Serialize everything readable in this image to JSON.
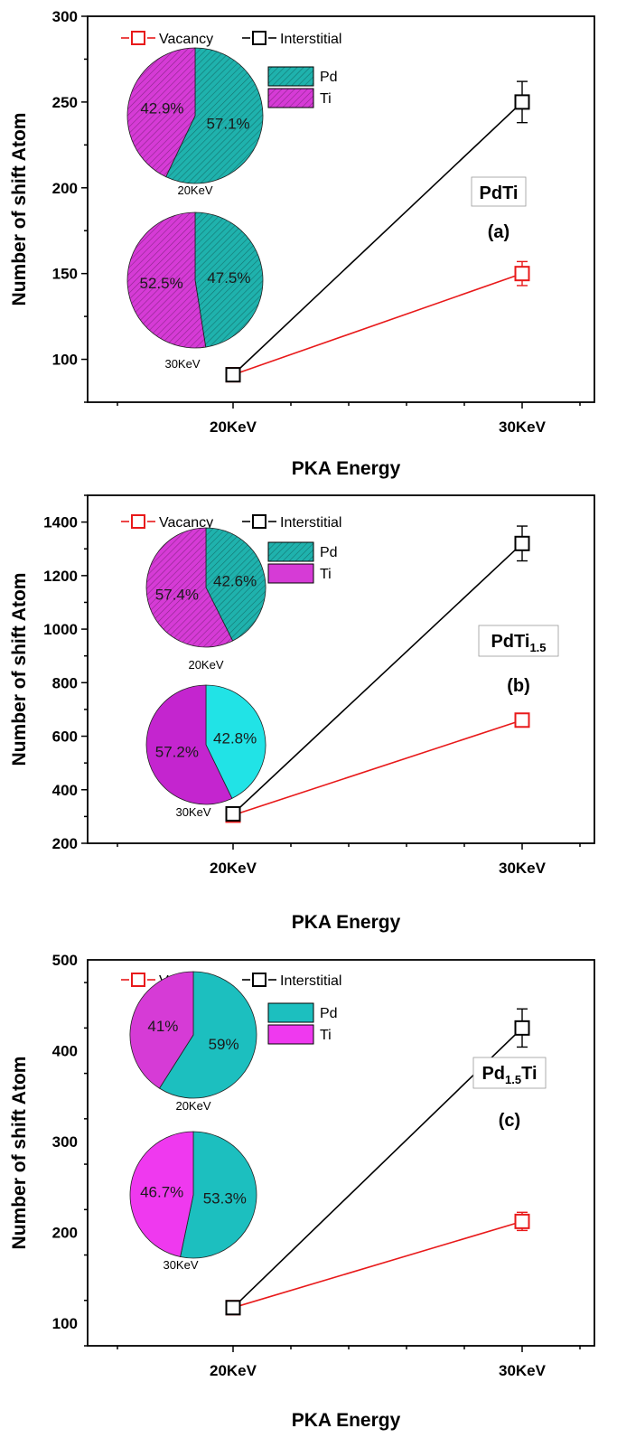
{
  "chart_data": [
    {
      "type": "line",
      "panel_label": "(a)",
      "material": {
        "base": "PdTi",
        "sub": "",
        "tail": ""
      },
      "xlabel": "PKA Energy",
      "ylabel": "Number of shift Atom",
      "categories": [
        "20KeV",
        "30KeV"
      ],
      "ylim": [
        75,
        300
      ],
      "yticks": [
        100,
        150,
        200,
        250,
        300
      ],
      "series": [
        {
          "name": "Vacancy",
          "color": "#e8191a",
          "values": [
            91,
            150
          ],
          "errors": [
            0,
            7
          ]
        },
        {
          "name": "Interstitial",
          "color": "#000000",
          "values": [
            91,
            250
          ],
          "errors": [
            0,
            12
          ]
        }
      ],
      "pie_legend": [
        {
          "label": "Pd",
          "color": "#1fb2ad",
          "hatched": true
        },
        {
          "label": "Ti",
          "color": "#d63bd6",
          "hatched": true
        }
      ],
      "pies": [
        {
          "caption": "20KeV",
          "slices": [
            {
              "label": "Pd",
              "value": 57.1,
              "text": "57.1%",
              "color": "#1fb2ad",
              "hatched": true
            },
            {
              "label": "Ti",
              "value": 42.9,
              "text": "42.9%",
              "color": "#d63bd6",
              "hatched": true
            }
          ]
        },
        {
          "caption": "30KeV",
          "slices": [
            {
              "label": "Pd",
              "value": 47.5,
              "text": "47.5%",
              "color": "#1fb2ad",
              "hatched": true
            },
            {
              "label": "Ti",
              "value": 52.5,
              "text": "52.5%",
              "color": "#d63bd6",
              "hatched": true
            }
          ]
        }
      ]
    },
    {
      "type": "line",
      "panel_label": "(b)",
      "material": {
        "base": "PdTi",
        "sub": "1.5",
        "tail": ""
      },
      "xlabel": "PKA Energy",
      "ylabel": "Number of shift Atom",
      "categories": [
        "20KeV",
        "30KeV"
      ],
      "ylim": [
        200,
        1500
      ],
      "yticks": [
        200,
        400,
        600,
        800,
        1000,
        1200,
        1400
      ],
      "series": [
        {
          "name": "Vacancy",
          "color": "#e8191a",
          "values": [
            305,
            660
          ],
          "errors": [
            0,
            25
          ]
        },
        {
          "name": "Interstitial",
          "color": "#000000",
          "values": [
            310,
            1320
          ],
          "errors": [
            0,
            65
          ]
        }
      ],
      "pie_legend": [
        {
          "label": "Pd",
          "color": "#1fb2ad",
          "hatched": true
        },
        {
          "label": "Ti",
          "color": "#d63bd6",
          "hatched": false
        }
      ],
      "pies": [
        {
          "caption": "20KeV",
          "slices": [
            {
              "label": "Pd",
              "value": 42.6,
              "text": "42.6%",
              "color": "#1fb2ad",
              "hatched": true
            },
            {
              "label": "Ti",
              "value": 57.4,
              "text": "57.4%",
              "color": "#d63bd6",
              "hatched": true
            }
          ]
        },
        {
          "caption": "30KeV",
          "slices": [
            {
              "label": "Pd",
              "value": 42.8,
              "text": "42.8%",
              "color": "#21e3e6",
              "hatched": false
            },
            {
              "label": "Ti",
              "value": 57.2,
              "text": "57.2%",
              "color": "#c425cf",
              "hatched": false
            }
          ]
        }
      ]
    },
    {
      "type": "line",
      "panel_label": "(c)",
      "material": {
        "base": "Pd",
        "sub": "1.5",
        "tail": "Ti"
      },
      "xlabel": "PKA Energy",
      "ylabel": "Number of shift Atom",
      "categories": [
        "20KeV",
        "30KeV"
      ],
      "ylim": [
        75,
        500
      ],
      "yticks": [
        100,
        200,
        300,
        400,
        500
      ],
      "series": [
        {
          "name": "Vacancy",
          "color": "#e8191a",
          "values": [
            117,
            212
          ],
          "errors": [
            0,
            10
          ]
        },
        {
          "name": "Interstitial",
          "color": "#000000",
          "values": [
            117,
            425
          ],
          "errors": [
            0,
            21
          ]
        }
      ],
      "pie_legend": [
        {
          "label": "Pd",
          "color": "#1cbfbf",
          "hatched": false
        },
        {
          "label": "Ti",
          "color": "#ef39ef",
          "hatched": false
        }
      ],
      "pies": [
        {
          "caption": "20KeV",
          "slices": [
            {
              "label": "Pd",
              "value": 59,
              "text": "59%",
              "color": "#1cbfbf",
              "hatched": false
            },
            {
              "label": "Ti",
              "value": 41,
              "text": "41%",
              "color": "#d63bd6",
              "hatched": false
            }
          ]
        },
        {
          "caption": "30KeV",
          "slices": [
            {
              "label": "Pd",
              "value": 53.3,
              "text": "53.3%",
              "color": "#1cbfbf",
              "hatched": false
            },
            {
              "label": "Ti",
              "value": 46.7,
              "text": "46.7%",
              "color": "#ef39ef",
              "hatched": false
            }
          ]
        }
      ]
    }
  ]
}
